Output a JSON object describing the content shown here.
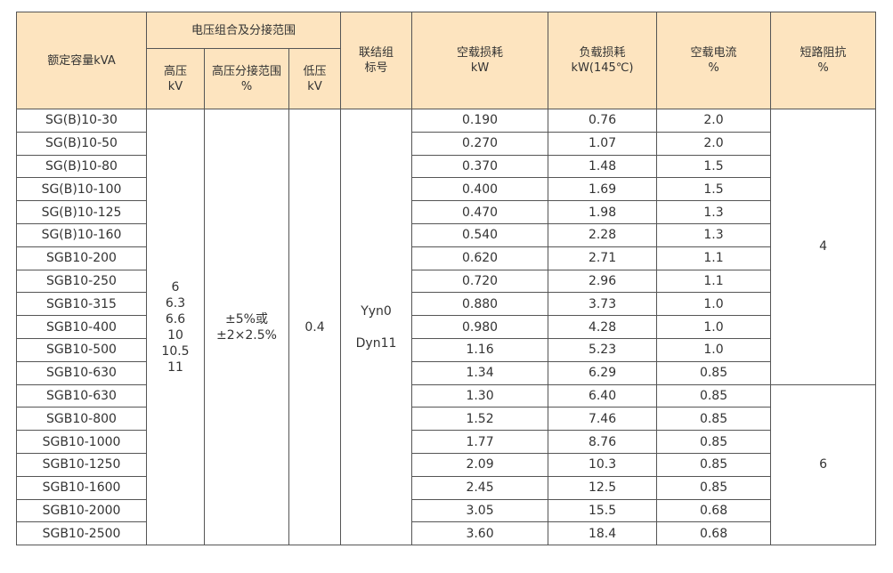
{
  "headers": {
    "capacity": "额定容量kVA",
    "voltage_group": "电压组合及分接范围",
    "hv": [
      "高压",
      "kV"
    ],
    "tap": [
      "高压分接范围",
      "%"
    ],
    "lv": [
      "低压",
      "kV"
    ],
    "connection": [
      "联结组",
      "标号"
    ],
    "no_load_loss": [
      "空载损耗",
      "kW"
    ],
    "load_loss": [
      "负载损耗",
      "kW(145℃)"
    ],
    "no_load_current": [
      "空载电流",
      "%"
    ],
    "impedance": [
      "短路阻抗",
      "%"
    ]
  },
  "merged": {
    "hv_values": [
      "6",
      "6.3",
      "6.6",
      "10",
      "10.5",
      "11"
    ],
    "tap_values": [
      "±5%或",
      "±2×2.5%"
    ],
    "lv_value": "0.4",
    "connection_values": [
      "Yyn0",
      "Dyn11"
    ],
    "impedance_group1": "4",
    "impedance_group2": "6"
  },
  "rows": [
    {
      "model": "SG(B)10-30",
      "no_load_loss": "0.190",
      "load_loss": "0.76",
      "no_load_current": "2.0"
    },
    {
      "model": "SG(B)10-50",
      "no_load_loss": "0.270",
      "load_loss": "1.07",
      "no_load_current": "2.0"
    },
    {
      "model": "SG(B)10-80",
      "no_load_loss": "0.370",
      "load_loss": "1.48",
      "no_load_current": "1.5"
    },
    {
      "model": "SG(B)10-100",
      "no_load_loss": "0.400",
      "load_loss": "1.69",
      "no_load_current": "1.5"
    },
    {
      "model": "SG(B)10-125",
      "no_load_loss": "0.470",
      "load_loss": "1.98",
      "no_load_current": "1.3"
    },
    {
      "model": "SG(B)10-160",
      "no_load_loss": "0.540",
      "load_loss": "2.28",
      "no_load_current": "1.3"
    },
    {
      "model": "SGB10-200",
      "no_load_loss": "0.620",
      "load_loss": "2.71",
      "no_load_current": "1.1"
    },
    {
      "model": "SGB10-250",
      "no_load_loss": "0.720",
      "load_loss": "2.96",
      "no_load_current": "1.1"
    },
    {
      "model": "SGB10-315",
      "no_load_loss": "0.880",
      "load_loss": "3.73",
      "no_load_current": "1.0"
    },
    {
      "model": "SGB10-400",
      "no_load_loss": "0.980",
      "load_loss": "4.28",
      "no_load_current": "1.0"
    },
    {
      "model": "SGB10-500",
      "no_load_loss": "1.16",
      "load_loss": "5.23",
      "no_load_current": "1.0"
    },
    {
      "model": "SGB10-630",
      "no_load_loss": "1.34",
      "load_loss": "6.29",
      "no_load_current": "0.85"
    },
    {
      "model": "SGB10-630",
      "no_load_loss": "1.30",
      "load_loss": "6.40",
      "no_load_current": "0.85"
    },
    {
      "model": "SGB10-800",
      "no_load_loss": "1.52",
      "load_loss": "7.46",
      "no_load_current": "0.85"
    },
    {
      "model": "SGB10-1000",
      "no_load_loss": "1.77",
      "load_loss": "8.76",
      "no_load_current": "0.85"
    },
    {
      "model": "SGB10-1250",
      "no_load_loss": "2.09",
      "load_loss": "10.3",
      "no_load_current": "0.85"
    },
    {
      "model": "SGB10-1600",
      "no_load_loss": "2.45",
      "load_loss": "12.5",
      "no_load_current": "0.85"
    },
    {
      "model": "SGB10-2000",
      "no_load_loss": "3.05",
      "load_loss": "15.5",
      "no_load_current": "0.68"
    },
    {
      "model": "SGB10-2500",
      "no_load_loss": "3.60",
      "load_loss": "18.4",
      "no_load_current": "0.68"
    }
  ]
}
